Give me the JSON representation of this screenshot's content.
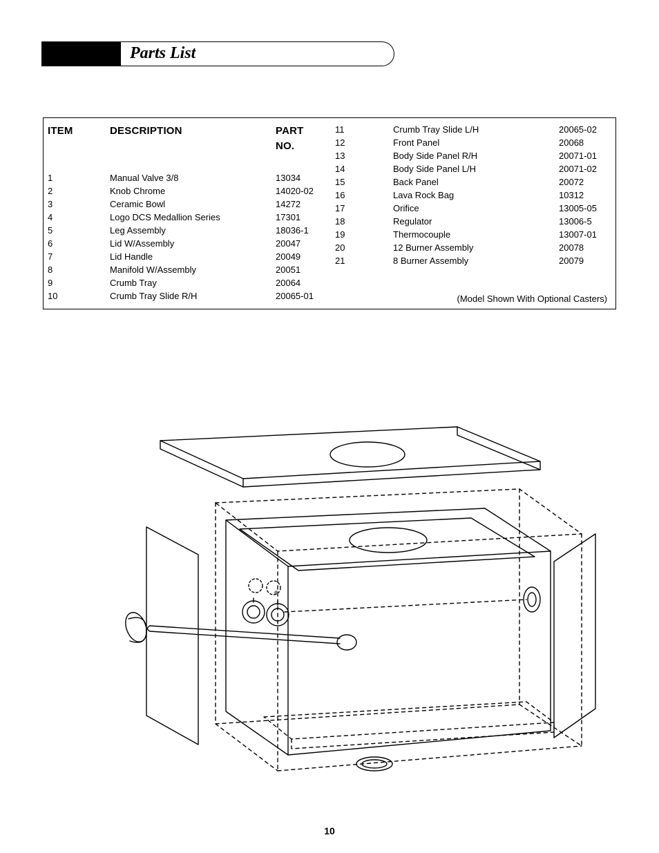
{
  "header": {
    "title": "Parts List"
  },
  "table": {
    "headers": {
      "item": "ITEM",
      "description": "DESCRIPTION",
      "partno": "PART NO."
    },
    "left": [
      {
        "item": "1",
        "desc": "Manual Valve 3/8",
        "part": "13034"
      },
      {
        "item": "2",
        "desc": "Knob Chrome",
        "part": "14020-02"
      },
      {
        "item": "3",
        "desc": "Ceramic Bowl",
        "part": "14272"
      },
      {
        "item": "4",
        "desc": "Logo DCS Medallion Series",
        "part": "17301"
      },
      {
        "item": "5",
        "desc": "Leg Assembly",
        "part": "18036-1"
      },
      {
        "item": "6",
        "desc": "Lid W/Assembly",
        "part": "20047"
      },
      {
        "item": "7",
        "desc": "Lid Handle",
        "part": "20049"
      },
      {
        "item": "8",
        "desc": "Manifold W/Assembly",
        "part": "20051"
      },
      {
        "item": "9",
        "desc": "Crumb Tray",
        "part": "20064"
      },
      {
        "item": "10",
        "desc": "Crumb Tray Slide R/H",
        "part": "20065-01"
      }
    ],
    "right": [
      {
        "item": "11",
        "desc": "Crumb Tray Slide L/H",
        "part": "20065-02"
      },
      {
        "item": "12",
        "desc": "Front Panel",
        "part": "20068"
      },
      {
        "item": "13",
        "desc": "Body Side Panel  R/H",
        "part": "20071-01"
      },
      {
        "item": "14",
        "desc": "Body Side Panel L/H",
        "part": "20071-02"
      },
      {
        "item": "15",
        "desc": "Back Panel",
        "part": "20072"
      },
      {
        "item": "16",
        "desc": "Lava Rock Bag",
        "part": "10312"
      },
      {
        "item": "17",
        "desc": "Orifice",
        "part": "13005-05"
      },
      {
        "item": "18",
        "desc": "Regulator",
        "part": "13006-5"
      },
      {
        "item": "19",
        "desc": "Thermocouple",
        "part": "13007-01"
      },
      {
        "item": "20",
        "desc": "12 Burner Assembly",
        "part": "20078"
      },
      {
        "item": "21",
        "desc": "8 Burner Assembly",
        "part": "20079"
      }
    ],
    "note": "(Model Shown With Optional Casters)"
  },
  "page_number": "10",
  "diagram": {
    "stroke": "#000000",
    "stroke_width": 1.4,
    "dash": "5,5",
    "background": "#ffffff"
  }
}
